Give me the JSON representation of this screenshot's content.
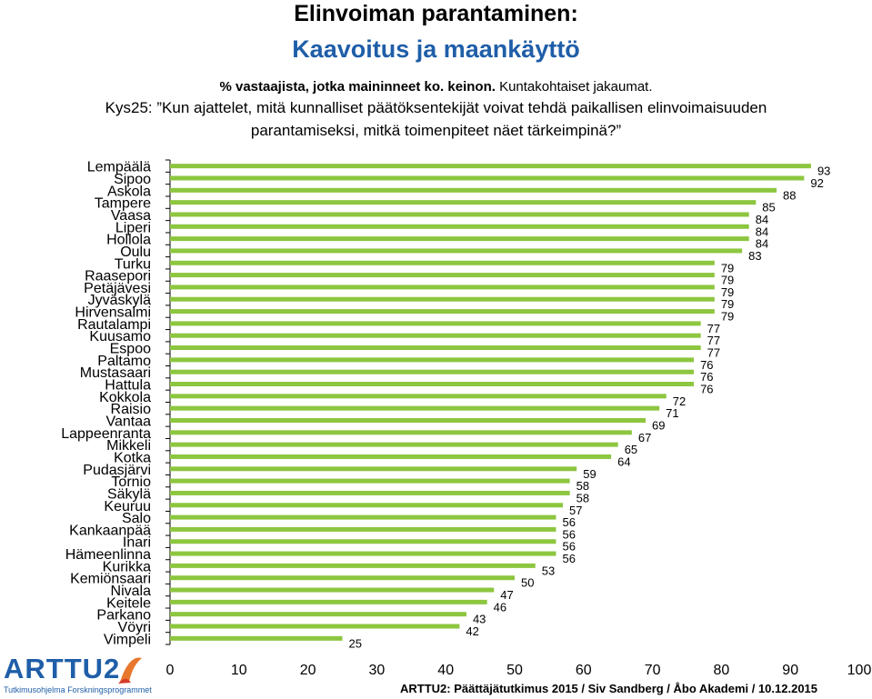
{
  "header": {
    "title": "Elinvoiman parantaminen:",
    "subtitle": "Kaavoitus ja maankäyttö",
    "note_bold": "% vastaajista, jotka maininneet ko. keinon.",
    "note_regular": " Kuntakohtaiset jakaumat.",
    "question_line1": "Kys25: ”Kun ajattelet, mitä kunnalliset päätöksentekijät voivat tehdä paikallisen elinvoimaisuuden",
    "question_line2": "parantamiseksi, mitkä toimenpiteet näet tärkeimpinä?”"
  },
  "footer": {
    "credit": "ARTTU2: Päättäjätutkimus 2015 / Siv Sandberg / Åbo Akademi / 10.12.2015",
    "logo_text": "ARTTU2",
    "logo_tagline": "Tutkimusohjelma Forskningsprogrammet"
  },
  "colors": {
    "bar": "#8dc63f",
    "title_blue": "#1f5ea8",
    "axis": "#000000"
  },
  "chart_data": {
    "type": "bar",
    "orientation": "horizontal",
    "categories": [
      "Lempäälä",
      "Sipoo",
      "Askola",
      "Tampere",
      "Vaasa",
      "Liperi",
      "Hollola",
      "Oulu",
      "Turku",
      "Raasepori",
      "Petäjävesi",
      "Jyväskylä",
      "Hirvensalmi",
      "Rautalampi",
      "Kuusamo",
      "Espoo",
      "Paltamo",
      "Mustasaari",
      "Hattula",
      "Kokkola",
      "Raisio",
      "Vantaa",
      "Lappeenranta",
      "Mikkeli",
      "Kotka",
      "Pudasjärvi",
      "Tornio",
      "Säkylä",
      "Keuruu",
      "Salo",
      "Kankaanpää",
      "Inari",
      "Hämeenlinna",
      "Kurikka",
      "Kemiönsaari",
      "Nivala",
      "Keitele",
      "Parkano",
      "Vöyri",
      "Vimpeli"
    ],
    "values": [
      93,
      92,
      88,
      85,
      84,
      84,
      84,
      83,
      79,
      79,
      79,
      79,
      79,
      77,
      77,
      77,
      76,
      76,
      76,
      72,
      71,
      69,
      67,
      65,
      64,
      59,
      58,
      58,
      57,
      56,
      56,
      56,
      56,
      53,
      50,
      47,
      46,
      43,
      42,
      25
    ],
    "xlim": [
      0,
      100
    ],
    "xticks": [
      0,
      10,
      20,
      30,
      40,
      50,
      60,
      70,
      80,
      90,
      100
    ],
    "grid": false,
    "legend": "none"
  }
}
